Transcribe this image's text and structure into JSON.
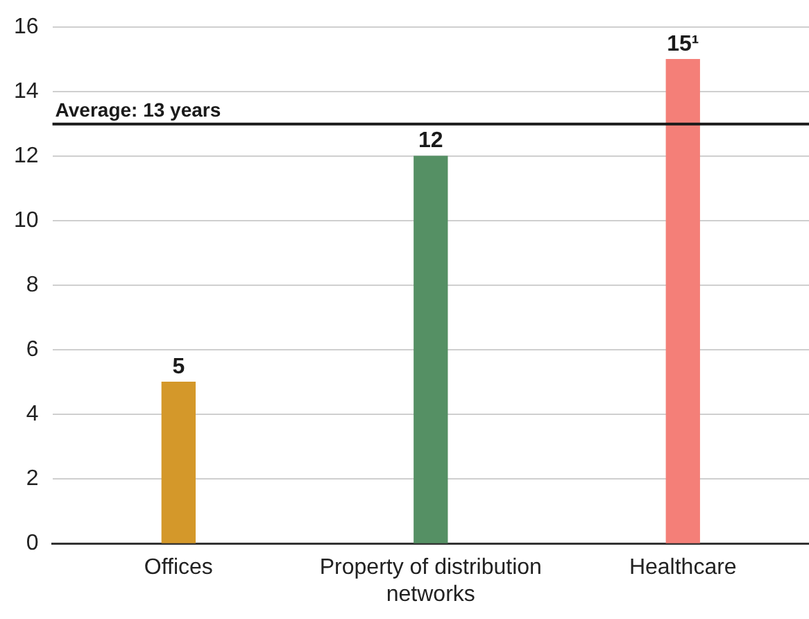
{
  "chart_data": {
    "type": "bar",
    "categories": [
      "Offices",
      "Property of distribution networks",
      "Healthcare"
    ],
    "values": [
      5,
      12,
      15
    ],
    "colors": [
      "#d4982a",
      "#559064",
      "#f47f78"
    ],
    "value_labels": [
      "5",
      "12",
      "15¹"
    ],
    "ylim": [
      0,
      16
    ],
    "yticks": [
      0,
      2,
      4,
      6,
      8,
      10,
      12,
      14,
      16
    ],
    "grid": "y",
    "legend": false,
    "ref_lines": [
      {
        "axis": "y",
        "value": 13,
        "label": "Average: 13 years",
        "color": "#1a1a1a"
      }
    ]
  }
}
